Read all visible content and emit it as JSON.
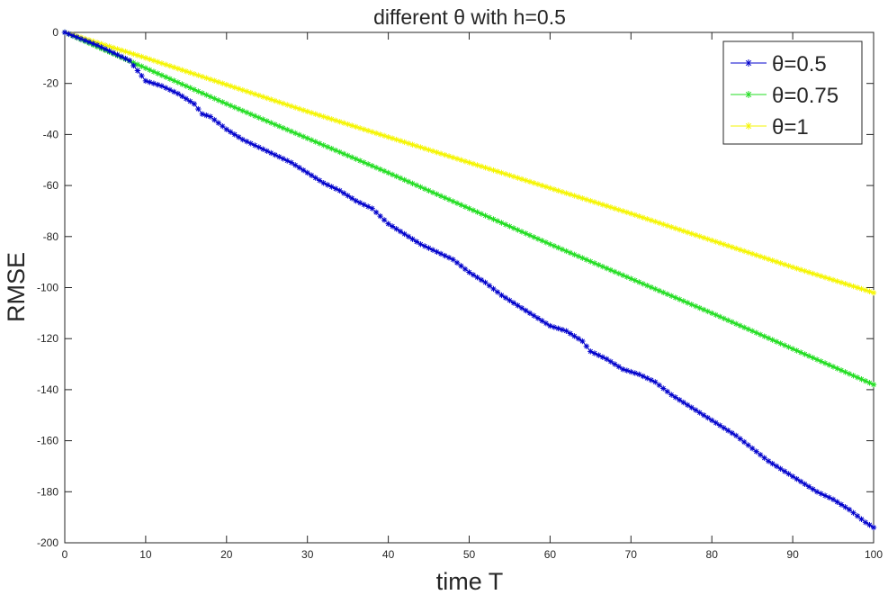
{
  "chart_data": {
    "type": "line",
    "title": "different θ with h=0.5",
    "xlabel": "time T",
    "ylabel": "RMSE",
    "xlim": [
      0,
      100
    ],
    "ylim": [
      -200,
      0
    ],
    "xticks": [
      0,
      10,
      20,
      30,
      40,
      50,
      60,
      70,
      80,
      90,
      100
    ],
    "yticks": [
      0,
      -20,
      -40,
      -60,
      -80,
      -100,
      -120,
      -140,
      -160,
      -180,
      -200
    ],
    "grid": false,
    "legend_position": "top-right",
    "marker": "asterisk",
    "series": [
      {
        "name": "θ=0.5",
        "color": "#0000cc",
        "points": [
          [
            0,
            0
          ],
          [
            2,
            -2.5
          ],
          [
            4,
            -5
          ],
          [
            6,
            -8
          ],
          [
            8,
            -11
          ],
          [
            9,
            -15
          ],
          [
            10,
            -19
          ],
          [
            12,
            -21
          ],
          [
            14,
            -24
          ],
          [
            15,
            -26
          ],
          [
            16,
            -28
          ],
          [
            17,
            -32
          ],
          [
            18,
            -33
          ],
          [
            20,
            -38
          ],
          [
            22,
            -42
          ],
          [
            24,
            -45
          ],
          [
            26,
            -48
          ],
          [
            28,
            -51
          ],
          [
            30,
            -55
          ],
          [
            32,
            -59
          ],
          [
            34,
            -62
          ],
          [
            36,
            -66
          ],
          [
            38,
            -69
          ],
          [
            40,
            -75
          ],
          [
            42,
            -79
          ],
          [
            44,
            -83
          ],
          [
            46,
            -86
          ],
          [
            48,
            -89
          ],
          [
            50,
            -94
          ],
          [
            52,
            -98
          ],
          [
            54,
            -103
          ],
          [
            56,
            -107
          ],
          [
            58,
            -111
          ],
          [
            60,
            -115
          ],
          [
            62,
            -117
          ],
          [
            64,
            -121
          ],
          [
            65,
            -125
          ],
          [
            67,
            -128
          ],
          [
            69,
            -132
          ],
          [
            71,
            -134
          ],
          [
            73,
            -137
          ],
          [
            75,
            -142
          ],
          [
            77,
            -146
          ],
          [
            79,
            -150
          ],
          [
            81,
            -154
          ],
          [
            83,
            -158
          ],
          [
            85,
            -163
          ],
          [
            87,
            -168
          ],
          [
            89,
            -172
          ],
          [
            91,
            -176
          ],
          [
            93,
            -180
          ],
          [
            95,
            -183
          ],
          [
            97,
            -187
          ],
          [
            99,
            -192
          ],
          [
            100,
            -194
          ]
        ]
      },
      {
        "name": "θ=0.75",
        "color": "#22dd22",
        "points": [
          [
            0,
            0
          ],
          [
            10,
            -14
          ],
          [
            20,
            -28
          ],
          [
            30,
            -41.5
          ],
          [
            40,
            -55
          ],
          [
            50,
            -69
          ],
          [
            60,
            -83
          ],
          [
            70,
            -96.5
          ],
          [
            80,
            -110
          ],
          [
            90,
            -124
          ],
          [
            100,
            -138
          ]
        ]
      },
      {
        "name": "θ=1",
        "color": "#f5f500",
        "points": [
          [
            0,
            0
          ],
          [
            10,
            -10
          ],
          [
            20,
            -20.5
          ],
          [
            30,
            -31
          ],
          [
            40,
            -41
          ],
          [
            50,
            -51
          ],
          [
            60,
            -61
          ],
          [
            70,
            -71
          ],
          [
            80,
            -81.5
          ],
          [
            90,
            -92
          ],
          [
            100,
            -102
          ]
        ]
      }
    ]
  }
}
